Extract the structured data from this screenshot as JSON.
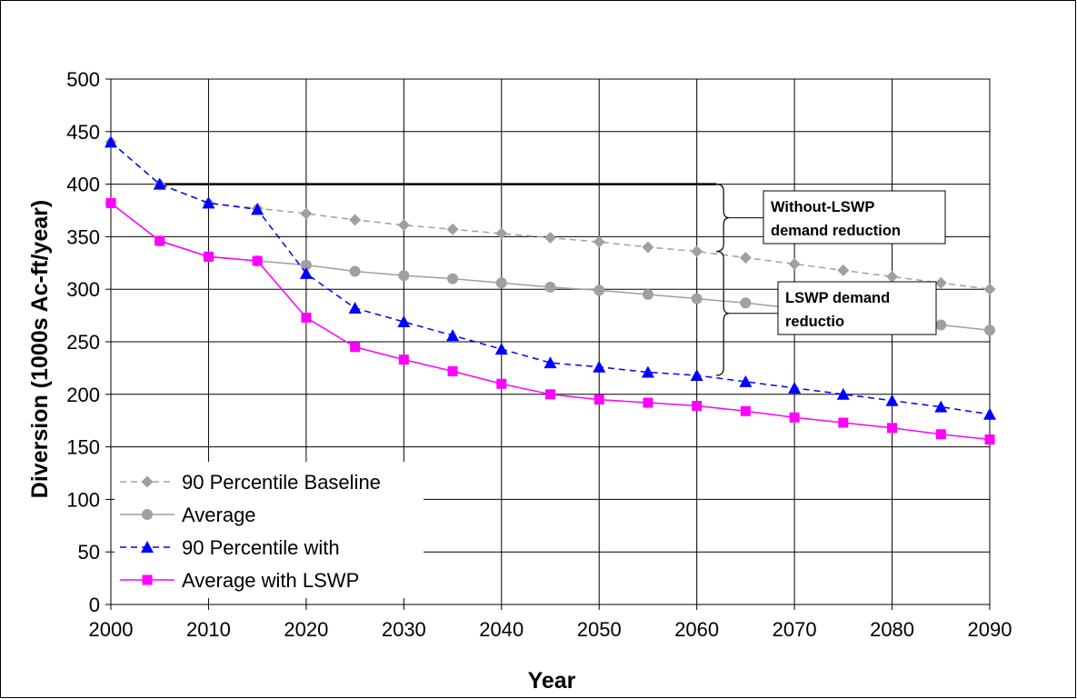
{
  "chart_data": {
    "type": "line",
    "title": "",
    "xlabel": "Year",
    "ylabel": "Diversion (1000s Ac-ft/year)",
    "xlim": [
      2000,
      2090
    ],
    "ylim": [
      0,
      500
    ],
    "x_ticks": [
      2000,
      2010,
      2020,
      2030,
      2040,
      2050,
      2060,
      2070,
      2080,
      2090
    ],
    "y_ticks": [
      0,
      50,
      100,
      150,
      200,
      250,
      300,
      350,
      400,
      450,
      500
    ],
    "grid": true,
    "legend_position": "bottom-left",
    "x": [
      2000,
      2005,
      2010,
      2015,
      2020,
      2025,
      2030,
      2035,
      2040,
      2045,
      2050,
      2055,
      2060,
      2065,
      2070,
      2075,
      2080,
      2085,
      2090
    ],
    "series": [
      {
        "name": "90 Percentile Baseline",
        "color": "#a0a0a0",
        "dashed": true,
        "marker": "diamond",
        "values": [
          440,
          400,
          382,
          377,
          372,
          366,
          361,
          357,
          353,
          349,
          345,
          340,
          336,
          330,
          324,
          318,
          312,
          306,
          300
        ]
      },
      {
        "name": "Average",
        "color": "#a0a0a0",
        "dashed": false,
        "marker": "circle",
        "values": [
          382,
          346,
          331,
          327,
          323,
          317,
          313,
          310,
          306,
          302,
          299,
          295,
          291,
          287,
          null,
          null,
          null,
          266,
          261
        ]
      },
      {
        "name": "90 Percentile with",
        "color": "#0000ff",
        "dashed": true,
        "marker": "triangle",
        "values": [
          440,
          400,
          382,
          376,
          315,
          282,
          269,
          256,
          243,
          230,
          226,
          221,
          218,
          212,
          206,
          200,
          194,
          188,
          181
        ]
      },
      {
        "name": "Average with LSWP",
        "color": "#ff00ff",
        "dashed": false,
        "marker": "square",
        "values": [
          382,
          346,
          331,
          327,
          273,
          245,
          233,
          222,
          210,
          200,
          195,
          192,
          189,
          184,
          178,
          173,
          168,
          162,
          157
        ]
      }
    ],
    "reference_line": {
      "x_start": 2005,
      "x_end": 2062,
      "y": 400
    },
    "annotations": [
      {
        "id": "without",
        "lines": [
          "Without-LSWP",
          "demand reduction"
        ],
        "y_from": 336,
        "y_to": 400
      },
      {
        "id": "lswp",
        "lines": [
          "LSWP demand",
          "reductio"
        ],
        "y_from": 218,
        "y_to": 336
      }
    ]
  }
}
